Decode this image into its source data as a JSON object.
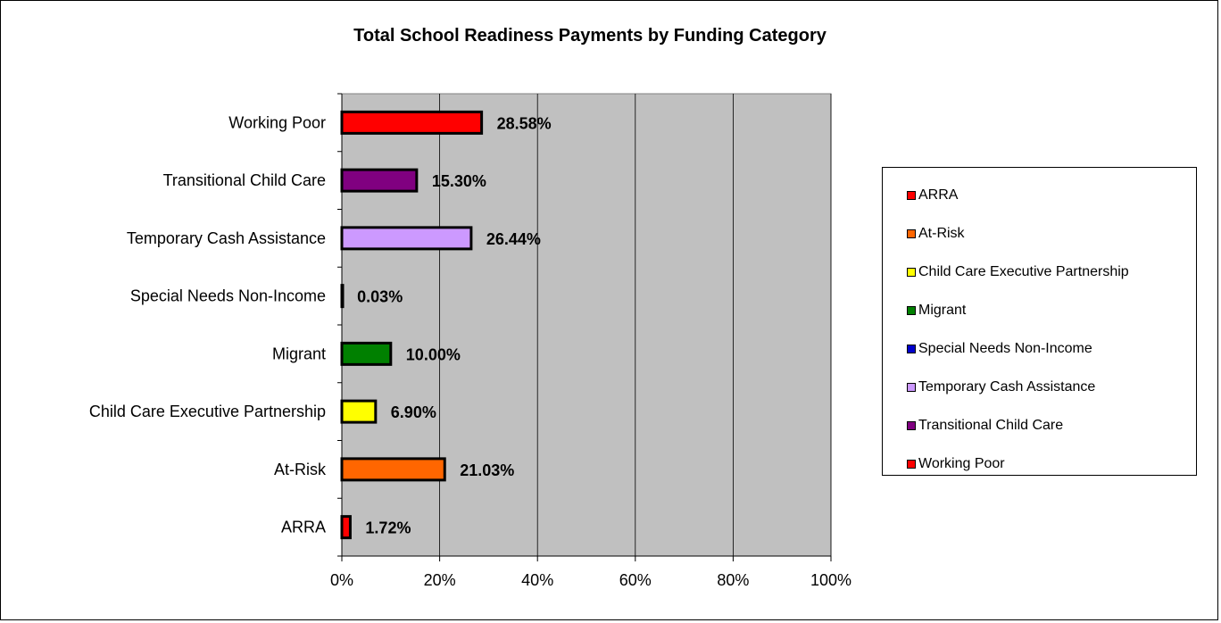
{
  "chart_data": {
    "type": "bar",
    "orientation": "horizontal",
    "title": "Total School Readiness Payments by Funding Category",
    "categories": [
      "ARRA",
      "At-Risk",
      "Child Care Executive Partnership",
      "Migrant",
      "Special Needs Non-Income",
      "Temporary Cash Assistance",
      "Transitional Child Care",
      "Working Poor"
    ],
    "values": [
      1.72,
      21.03,
      6.9,
      10.0,
      0.03,
      26.44,
      15.3,
      28.58
    ],
    "data_labels": [
      "1.72%",
      "21.03%",
      "6.90%",
      "10.00%",
      "0.03%",
      "26.44%",
      "15.30%",
      "28.58%"
    ],
    "colors": [
      "#ff0000",
      "#ff6600",
      "#ffff00",
      "#008000",
      "#0000cc",
      "#cc99ff",
      "#800080",
      "#ff0000"
    ],
    "xlim": [
      0,
      100
    ],
    "x_ticks": [
      "0%",
      "20%",
      "40%",
      "60%",
      "80%",
      "100%"
    ],
    "grid": "vertical",
    "plot_background": "#c0c0c0",
    "legend_position": "right",
    "legend": [
      "ARRA",
      "At-Risk",
      "Child Care Executive Partnership",
      "Migrant",
      "Special Needs Non-Income",
      "Temporary Cash Assistance",
      "Transitional Child Care",
      "Working Poor"
    ]
  }
}
